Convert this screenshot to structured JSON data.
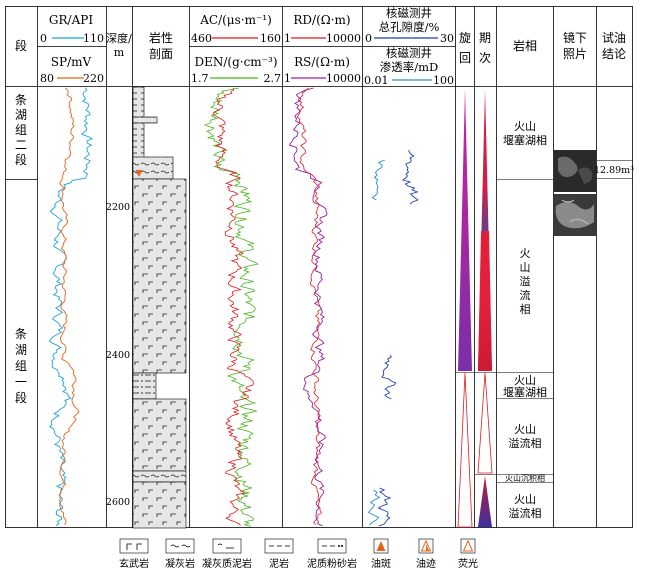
{
  "headers": {
    "segment": "段",
    "depth": [
      "深度/",
      "m"
    ],
    "lith": [
      "岩性",
      "剖面"
    ],
    "cycle": [
      "旋",
      "回"
    ],
    "stage": [
      "期",
      "次"
    ],
    "facies": "岩相",
    "photo": [
      "镜下",
      "照片"
    ],
    "test": [
      "试油",
      "结论"
    ]
  },
  "curves": {
    "gr": {
      "label": "GR/API",
      "min": "0",
      "max": "110",
      "color": "#1fa3d6"
    },
    "sp": {
      "label": "SP/mV",
      "min": "80",
      "max": "220",
      "color": "#e8631a"
    },
    "ac": {
      "label": "AC/(μs·m⁻¹)",
      "min": "460",
      "max": "160",
      "color": "#e01b1b"
    },
    "den": {
      "label": "DEN/(g·cm⁻³)",
      "min": "1.7",
      "max": "2.7",
      "color": "#48b41e"
    },
    "rd": {
      "label": "RD/(Ω·m)",
      "min": "1",
      "max": "10000",
      "color": "#e01b1b"
    },
    "rs": {
      "label": "RS/(Ω·m)",
      "min": "1",
      "max": "10000",
      "color": "#9b1fa0"
    },
    "por": {
      "label": [
        "核磁测井",
        "总孔隙度/%"
      ],
      "min": "0",
      "max": "30",
      "color": "#1f3fb0"
    },
    "perm": {
      "label": [
        "核磁测井",
        "渗透率/mD"
      ],
      "min": "0.01",
      "max": "100",
      "color": "#2a8fd0"
    }
  },
  "segments": [
    {
      "label": [
        "条",
        "湖",
        "组",
        "二",
        "段"
      ]
    },
    {
      "label": [
        "条",
        "湖",
        "组",
        "一",
        "段"
      ]
    }
  ],
  "depth_ticks": [
    "2200",
    "2400",
    "2600"
  ],
  "facies": [
    {
      "label": [
        "火山",
        "堰塞湖相"
      ]
    },
    {
      "label": [
        "火",
        "山",
        "溢",
        "流",
        "相"
      ]
    },
    {
      "label": [
        "火山",
        "堰塞湖相"
      ]
    },
    {
      "label": [
        "火山",
        "溢流相"
      ]
    },
    {
      "label": [
        "火山沉积相"
      ]
    },
    {
      "label": [
        "火山",
        "溢流相"
      ]
    }
  ],
  "test_result": "12.89m³",
  "legend": [
    {
      "icon": "basalt",
      "label": "玄武岩"
    },
    {
      "icon": "tuff",
      "label": "凝灰岩"
    },
    {
      "icon": "tuffaceous-mudstone",
      "label": "凝灰质泥岩"
    },
    {
      "icon": "mudstone",
      "label": "泥岩"
    },
    {
      "icon": "muddy-siltstone",
      "label": "泥质粉砂岩"
    },
    {
      "icon": "oil-spot",
      "label": "油斑"
    },
    {
      "icon": "oil-trace",
      "label": "油迹"
    },
    {
      "icon": "fluorescence",
      "label": "荧光"
    }
  ]
}
